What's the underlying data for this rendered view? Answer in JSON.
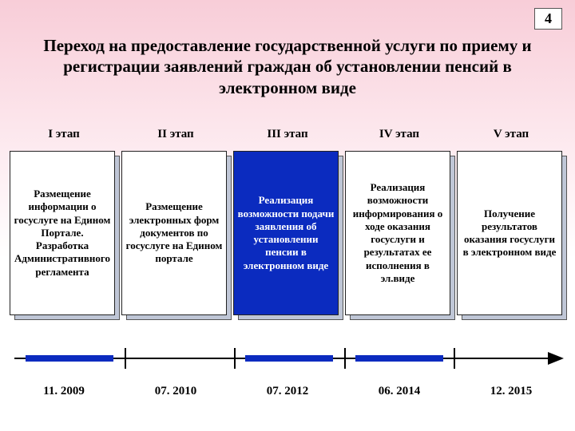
{
  "page_number": "4",
  "title": "Переход на предоставление государственной услуги по приему и регистрации заявлений граждан об установлении пенсий в электронном виде",
  "stages": [
    {
      "head": "I этап",
      "highlight": false,
      "text": "Размещение информации о госуслуге на Едином Портале. Разработка Административного регламента",
      "date": "11. 2009"
    },
    {
      "head": "II этап",
      "highlight": false,
      "text": "Размещение электронных форм документов по госуслуге на Едином портале",
      "date": "07. 2010"
    },
    {
      "head": "III этап",
      "highlight": true,
      "text": "Реализация возможности подачи заявления об установлении пенсии в электронном виде",
      "date": "07. 2012"
    },
    {
      "head": "IV этап",
      "highlight": false,
      "text": "Реализация возможности информирования о ходе оказания госуслуги и результатах ее исполнения в эл.виде",
      "date": "06. 2014"
    },
    {
      "head": "V этап",
      "highlight": false,
      "text": "Получение результатов оказания госуслуги в электронном виде",
      "date": "12. 2015"
    }
  ],
  "colors": {
    "highlight_bg": "#0b2bbf",
    "box_bg": "#ffffff",
    "shadow_bg": "#bfc6d6",
    "timeline_seg": "#0b2bbf"
  },
  "timeline": {
    "segments": [
      {
        "left_pct": 2,
        "width_pct": 16
      },
      {
        "left_pct": 42,
        "width_pct": 16
      },
      {
        "left_pct": 62,
        "width_pct": 16
      }
    ],
    "ticks_pct": [
      20,
      40,
      60,
      80
    ]
  }
}
